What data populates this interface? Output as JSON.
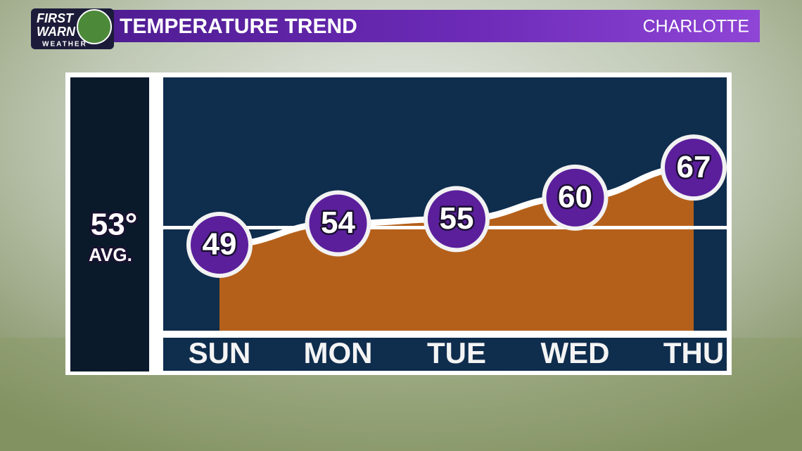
{
  "logo": {
    "line1": "FIRST",
    "line2": "WARN",
    "line3": "WEATHER"
  },
  "chart_data": {
    "type": "line",
    "title": "TEMPERATURE TREND",
    "location": "CHARLOTTE",
    "categories": [
      "SUN",
      "MON",
      "TUE",
      "WED",
      "THU"
    ],
    "values": [
      49,
      54,
      55,
      60,
      67
    ],
    "average": {
      "value": 53,
      "label": "53°"
    },
    "average_label": "AVG.",
    "ylim": [
      29,
      88
    ],
    "color": "#ffffff",
    "area_color": "#b5601a",
    "marker_color": "#5b1f9c"
  }
}
